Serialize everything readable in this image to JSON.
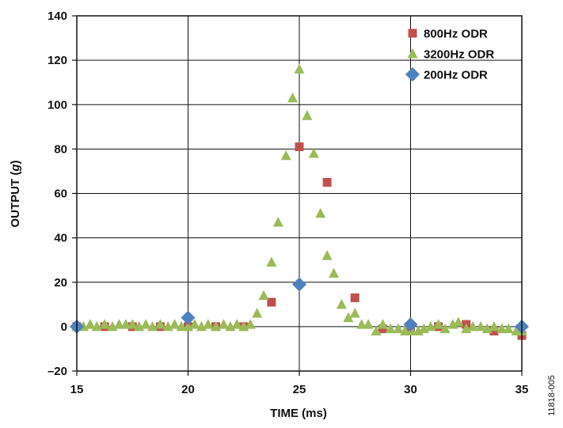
{
  "chart_data": {
    "type": "scatter",
    "xlabel": "TIME (ms)",
    "ylabel_prefix": "OUTPUT (",
    "ylabel_unit": "g",
    "ylabel_suffix": ")",
    "xlim": [
      15,
      35
    ],
    "ylim": [
      -20,
      140
    ],
    "x_ticks": [
      15,
      20,
      25,
      30,
      35
    ],
    "y_ticks": [
      -20,
      0,
      20,
      40,
      60,
      80,
      100,
      120,
      140
    ],
    "y_tick_labels": [
      "–20",
      "0",
      "20",
      "40",
      "60",
      "80",
      "100",
      "120",
      "140"
    ],
    "grid": true,
    "legend_position": "top-right",
    "series": [
      {
        "name": "800Hz ODR",
        "marker": "square",
        "color": "#c0504d",
        "points": [
          [
            15.0,
            0
          ],
          [
            16.25,
            0
          ],
          [
            17.5,
            0
          ],
          [
            18.75,
            0
          ],
          [
            20.0,
            0
          ],
          [
            21.25,
            0
          ],
          [
            22.5,
            0
          ],
          [
            23.75,
            11
          ],
          [
            25.0,
            81
          ],
          [
            26.25,
            65
          ],
          [
            27.5,
            13
          ],
          [
            28.75,
            -1
          ],
          [
            30.0,
            -1
          ],
          [
            31.25,
            0
          ],
          [
            32.5,
            1
          ],
          [
            33.75,
            -2
          ],
          [
            35.0,
            -4
          ]
        ]
      },
      {
        "name": "3200Hz ODR",
        "marker": "triangle",
        "color": "#9bbb59",
        "points": [
          [
            15.0,
            0
          ],
          [
            15.3,
            0
          ],
          [
            15.6,
            1
          ],
          [
            15.9,
            0
          ],
          [
            16.25,
            1
          ],
          [
            16.6,
            0
          ],
          [
            16.9,
            1
          ],
          [
            17.2,
            1
          ],
          [
            17.5,
            1
          ],
          [
            17.8,
            0
          ],
          [
            18.1,
            1
          ],
          [
            18.4,
            0
          ],
          [
            18.75,
            1
          ],
          [
            19.1,
            0
          ],
          [
            19.4,
            1
          ],
          [
            19.7,
            0
          ],
          [
            20.0,
            0
          ],
          [
            20.3,
            1
          ],
          [
            20.6,
            0
          ],
          [
            20.9,
            1
          ],
          [
            21.25,
            0
          ],
          [
            21.6,
            1
          ],
          [
            21.9,
            0
          ],
          [
            22.2,
            1
          ],
          [
            22.5,
            0
          ],
          [
            22.8,
            1
          ],
          [
            23.1,
            6
          ],
          [
            23.4,
            14
          ],
          [
            23.75,
            29
          ],
          [
            24.05,
            47
          ],
          [
            24.4,
            77
          ],
          [
            24.7,
            103
          ],
          [
            25.0,
            116
          ],
          [
            25.35,
            95
          ],
          [
            25.65,
            78
          ],
          [
            25.95,
            51
          ],
          [
            26.25,
            32
          ],
          [
            26.55,
            24
          ],
          [
            26.9,
            10
          ],
          [
            27.2,
            4
          ],
          [
            27.5,
            6
          ],
          [
            27.8,
            1
          ],
          [
            28.1,
            1
          ],
          [
            28.45,
            -2
          ],
          [
            28.75,
            1
          ],
          [
            29.1,
            -1
          ],
          [
            29.45,
            -1
          ],
          [
            29.75,
            -2
          ],
          [
            30.05,
            -2
          ],
          [
            30.35,
            -2
          ],
          [
            30.6,
            -1
          ],
          [
            30.9,
            0
          ],
          [
            31.25,
            1
          ],
          [
            31.55,
            -1
          ],
          [
            31.9,
            1
          ],
          [
            32.15,
            2
          ],
          [
            32.5,
            -1
          ],
          [
            32.8,
            0
          ],
          [
            33.15,
            0
          ],
          [
            33.45,
            -1
          ],
          [
            33.75,
            0
          ],
          [
            34.1,
            -1
          ],
          [
            34.4,
            -1
          ],
          [
            34.75,
            -2
          ],
          [
            35.0,
            -2
          ]
        ]
      },
      {
        "name": "200Hz ODR",
        "marker": "diamond",
        "color": "#4f81bd",
        "points": [
          [
            15.0,
            0
          ],
          [
            20.0,
            4
          ],
          [
            25.0,
            19
          ],
          [
            30.0,
            1
          ],
          [
            35.0,
            0
          ]
        ]
      }
    ]
  },
  "figure_id": "11818-005"
}
